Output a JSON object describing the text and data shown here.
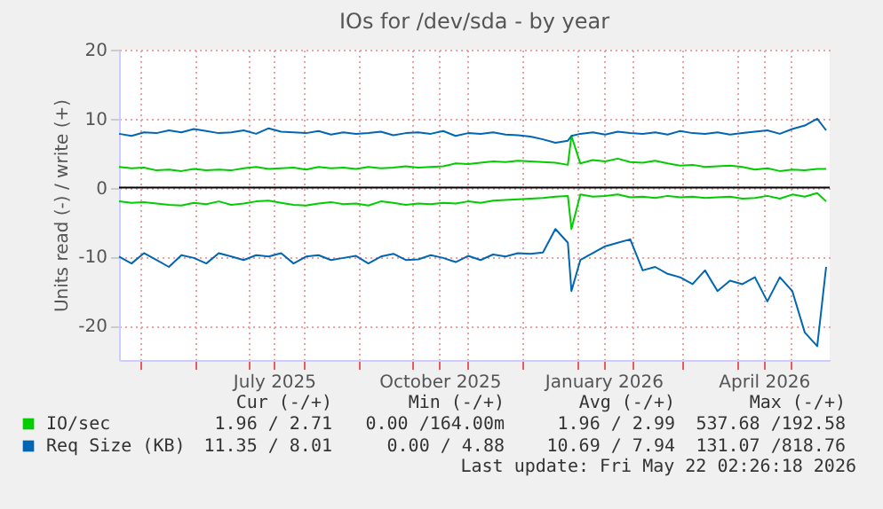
{
  "chart_data": {
    "type": "line",
    "title": "IOs for /dev/sda - by year",
    "ylabel": "Units read (-) / write (+)",
    "x": [
      "2025-04-19",
      "2025-04-26",
      "2025-05-03",
      "2025-05-10",
      "2025-05-17",
      "2025-05-24",
      "2025-05-31",
      "2025-06-07",
      "2025-06-14",
      "2025-06-21",
      "2025-06-28",
      "2025-07-05",
      "2025-07-12",
      "2025-07-19",
      "2025-07-26",
      "2025-08-02",
      "2025-08-09",
      "2025-08-16",
      "2025-08-23",
      "2025-08-30",
      "2025-09-06",
      "2025-09-13",
      "2025-09-20",
      "2025-09-27",
      "2025-10-04",
      "2025-10-11",
      "2025-10-18",
      "2025-10-25",
      "2025-11-01",
      "2025-11-08",
      "2025-11-15",
      "2025-11-22",
      "2025-11-29",
      "2025-12-06",
      "2025-12-13",
      "2025-12-20",
      "2025-12-27",
      "2025-12-29",
      "2026-01-03",
      "2026-01-10",
      "2026-01-17",
      "2026-01-24",
      "2026-01-31",
      "2026-02-07",
      "2026-02-14",
      "2026-02-21",
      "2026-02-28",
      "2026-03-07",
      "2026-03-14",
      "2026-03-21",
      "2026-03-28",
      "2026-04-04",
      "2026-04-11",
      "2026-04-18",
      "2026-04-25",
      "2026-05-02",
      "2026-05-09",
      "2026-05-16",
      "2026-05-21"
    ],
    "series": [
      {
        "name": "IO/sec",
        "color": "#00cc00",
        "values": [
          3.0,
          2.8,
          2.9,
          2.5,
          2.6,
          2.4,
          2.7,
          2.5,
          2.6,
          2.5,
          2.8,
          3.0,
          2.7,
          2.8,
          2.9,
          2.6,
          3.0,
          2.8,
          2.9,
          2.7,
          3.0,
          2.8,
          2.9,
          3.1,
          2.9,
          3.0,
          3.1,
          3.5,
          3.4,
          3.6,
          3.8,
          3.7,
          3.9,
          3.8,
          3.7,
          3.6,
          3.3,
          7.5,
          3.5,
          4.0,
          3.8,
          4.2,
          3.7,
          3.6,
          3.9,
          3.5,
          3.2,
          3.3,
          3.0,
          3.1,
          3.2,
          3.0,
          2.6,
          2.8,
          2.4,
          2.6,
          2.5,
          2.7,
          2.7
        ]
      },
      {
        "color": "#00cc00",
        "values": [
          -2.0,
          -2.2,
          -2.1,
          -2.3,
          -2.5,
          -2.6,
          -2.2,
          -2.4,
          -2.0,
          -2.5,
          -2.3,
          -2.0,
          -1.9,
          -2.2,
          -2.5,
          -2.6,
          -2.3,
          -2.1,
          -2.4,
          -2.3,
          -2.6,
          -2.0,
          -2.2,
          -2.5,
          -2.3,
          -2.4,
          -2.2,
          -2.3,
          -2.0,
          -2.2,
          -1.9,
          -1.8,
          -1.7,
          -1.6,
          -1.5,
          -1.3,
          -1.2,
          -6.0,
          -1.0,
          -1.3,
          -1.2,
          -1.0,
          -1.4,
          -1.3,
          -1.5,
          -1.2,
          -1.4,
          -1.3,
          -1.5,
          -1.4,
          -1.3,
          -1.6,
          -1.5,
          -1.2,
          -1.6,
          -1.0,
          -1.3,
          -0.8,
          -2.0
        ]
      },
      {
        "name": "Req Size (KB)",
        "color": "#0066b3",
        "values": [
          7.8,
          7.5,
          8.0,
          7.9,
          8.3,
          8.0,
          8.5,
          8.2,
          7.9,
          8.0,
          8.3,
          7.8,
          8.6,
          8.1,
          8.0,
          7.9,
          8.2,
          7.7,
          8.0,
          7.8,
          7.9,
          8.1,
          7.6,
          7.9,
          8.0,
          7.8,
          8.2,
          7.5,
          7.9,
          7.8,
          8.0,
          7.7,
          7.6,
          7.4,
          7.0,
          6.5,
          6.8,
          7.5,
          7.8,
          8.0,
          7.7,
          8.1,
          7.9,
          7.8,
          8.0,
          7.7,
          8.2,
          7.9,
          7.8,
          8.0,
          7.7,
          7.9,
          8.1,
          8.3,
          7.8,
          8.5,
          9.0,
          10.0,
          8.3
        ]
      },
      {
        "color": "#0066b3",
        "values": [
          -10.0,
          -11.0,
          -9.5,
          -10.5,
          -11.5,
          -9.8,
          -10.2,
          -11.0,
          -9.5,
          -10.0,
          -10.5,
          -9.8,
          -10.0,
          -9.5,
          -11.0,
          -10.0,
          -9.8,
          -10.5,
          -10.2,
          -9.9,
          -11.0,
          -10.0,
          -9.6,
          -10.5,
          -10.4,
          -9.8,
          -10.2,
          -10.8,
          -9.9,
          -10.5,
          -9.7,
          -10.0,
          -9.5,
          -9.6,
          -9.4,
          -6.0,
          -8.0,
          -15.0,
          -10.5,
          -9.5,
          -8.5,
          -8.0,
          -7.5,
          -12.0,
          -11.5,
          -12.5,
          -13.0,
          -14.0,
          -12.0,
          -15.0,
          -13.5,
          -14.0,
          -13.0,
          -16.5,
          -13.0,
          -15.0,
          -21.0,
          -23.0,
          -11.5
        ]
      }
    ],
    "ylim": [
      -25,
      20
    ],
    "yticks": [
      -20,
      -10,
      0,
      10,
      20
    ],
    "xlim": [
      "2025-04-19",
      "2026-05-23"
    ],
    "xticks": [
      {
        "value": "2025-05-01",
        "label": null
      },
      {
        "value": "2025-06-01",
        "label": null
      },
      {
        "value": "2025-07-01",
        "label": null
      },
      {
        "value": "2025-07-15",
        "label": "July 2025"
      },
      {
        "value": "2025-08-01",
        "label": null
      },
      {
        "value": "2025-09-01",
        "label": null
      },
      {
        "value": "2025-10-01",
        "label": null
      },
      {
        "value": "2025-10-16",
        "label": "October 2025"
      },
      {
        "value": "2025-11-01",
        "label": null
      },
      {
        "value": "2025-12-01",
        "label": null
      },
      {
        "value": "2026-01-01",
        "label": null
      },
      {
        "value": "2026-01-16",
        "label": "January 2026"
      },
      {
        "value": "2026-02-01",
        "label": null
      },
      {
        "value": "2026-03-01",
        "label": null
      },
      {
        "value": "2026-04-01",
        "label": null
      },
      {
        "value": "2026-04-16",
        "label": "April 2026"
      },
      {
        "value": "2026-05-01",
        "label": null
      }
    ],
    "ref_lines": [
      {
        "axis": "y",
        "value": 0,
        "color": "#000000"
      }
    ],
    "grid": true,
    "legend": "bottom",
    "annotations": [
      "Cur (-/+)",
      "Min (-/+)",
      "Avg (-/+)",
      "Max (-/+)",
      "1.96 / 2.71",
      "0.00 /164.00m",
      "1.96 / 2.99",
      "537.68 /192.58",
      "11.35 / 8.01",
      "0.00 / 4.88",
      "10.69 / 7.94",
      "131.07 /818.76",
      "Last update: Fri May 22 02:26:18 2026"
    ]
  }
}
